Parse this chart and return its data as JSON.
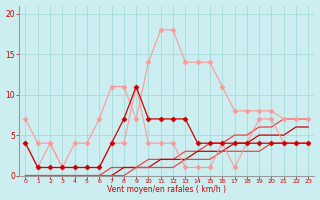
{
  "x": [
    0,
    1,
    2,
    3,
    4,
    5,
    6,
    7,
    8,
    9,
    10,
    11,
    12,
    13,
    14,
    15,
    16,
    17,
    18,
    19,
    20,
    21,
    22,
    23
  ],
  "line_light1": [
    4,
    1,
    4,
    1,
    4,
    4,
    7,
    11,
    11,
    7,
    14,
    18,
    18,
    14,
    14,
    14,
    11,
    8,
    8,
    8,
    8,
    7,
    7,
    7
  ],
  "line_light2": [
    7,
    4,
    4,
    1,
    1,
    1,
    1,
    4,
    4,
    11,
    4,
    4,
    4,
    1,
    1,
    1,
    4,
    1,
    4,
    7,
    7,
    4,
    4,
    4
  ],
  "line_dark1": [
    4,
    1,
    1,
    1,
    1,
    1,
    1,
    4,
    7,
    11,
    7,
    7,
    7,
    7,
    4,
    4,
    4,
    4,
    4,
    4,
    4,
    4,
    4,
    4
  ],
  "line_diag1": [
    0,
    0,
    0,
    0,
    0,
    0,
    0,
    1,
    1,
    1,
    2,
    2,
    2,
    3,
    3,
    4,
    4,
    5,
    5,
    6,
    6,
    7,
    7,
    7
  ],
  "line_diag2": [
    0,
    0,
    0,
    0,
    0,
    0,
    0,
    0,
    1,
    1,
    1,
    2,
    2,
    2,
    3,
    3,
    3,
    4,
    4,
    5,
    5,
    5,
    6,
    6
  ],
  "line_diag3": [
    0,
    0,
    0,
    0,
    0,
    0,
    0,
    0,
    0,
    1,
    1,
    1,
    1,
    2,
    2,
    2,
    3,
    3,
    3,
    3,
    4,
    4,
    4,
    4
  ],
  "bg_color": "#cceef0",
  "grid_color": "#aadddd",
  "color_light": "#ff9999",
  "color_dark": "#cc0000",
  "color_mid": "#ee4444",
  "xlabel": "Vent moyen/en rafales ( km/h )",
  "ylim": [
    0,
    21
  ],
  "xlim": [
    -0.5,
    23.5
  ],
  "yticks": [
    0,
    5,
    10,
    15,
    20
  ],
  "xticks": [
    0,
    1,
    2,
    3,
    4,
    5,
    6,
    7,
    8,
    9,
    10,
    11,
    12,
    13,
    14,
    15,
    16,
    17,
    18,
    19,
    20,
    21,
    22,
    23
  ]
}
